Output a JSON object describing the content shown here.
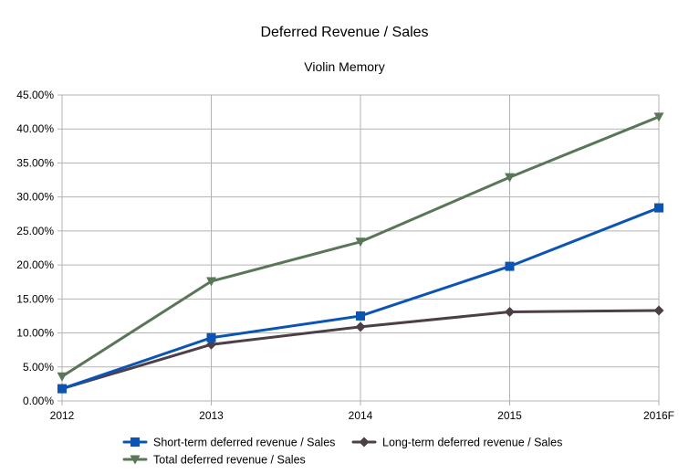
{
  "chart_data": {
    "type": "line",
    "title": "Deferred Revenue / Sales",
    "subtitle": "Violin Memory",
    "xlabel": "",
    "ylabel": "",
    "categories": [
      "2012",
      "2013",
      "2014",
      "2015",
      "2016F"
    ],
    "ylim": [
      0,
      45
    ],
    "yticks": [
      0,
      5,
      10,
      15,
      20,
      25,
      30,
      35,
      40,
      45
    ],
    "ytick_labels": [
      "0.00%",
      "5.00%",
      "10.00%",
      "15.00%",
      "20.00%",
      "25.00%",
      "30.00%",
      "35.00%",
      "40.00%",
      "45.00%"
    ],
    "grid": true,
    "legend_position": "bottom",
    "series": [
      {
        "name": "Short-term deferred revenue / Sales",
        "values": [
          1.8,
          9.3,
          12.5,
          19.8,
          28.4
        ],
        "color": "#0B54B3",
        "marker": "square"
      },
      {
        "name": "Long-term deferred revenue / Sales",
        "values": [
          1.8,
          8.3,
          10.9,
          13.1,
          13.3
        ],
        "color": "#4D3F48",
        "marker": "diamond"
      },
      {
        "name": "Total deferred revenue / Sales",
        "values": [
          3.6,
          17.6,
          23.4,
          32.9,
          41.8
        ],
        "color": "#5A7658",
        "marker": "triangle-down"
      }
    ]
  }
}
